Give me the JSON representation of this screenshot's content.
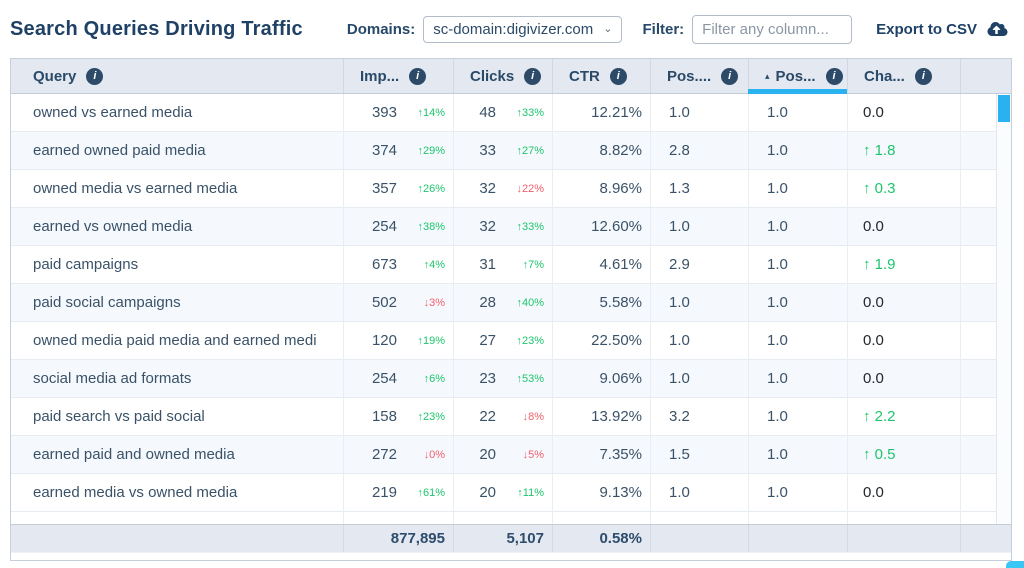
{
  "header": {
    "title": "Search Queries Driving Traffic",
    "domains_label": "Domains:",
    "domains_value": "sc-domain:digivizer.com",
    "filter_label": "Filter:",
    "filter_placeholder": "Filter any column...",
    "export_label": "Export to CSV"
  },
  "table": {
    "columns": [
      {
        "key": "query",
        "label": "Query",
        "sorted": false
      },
      {
        "key": "imp",
        "label": "Imp...",
        "sorted": false
      },
      {
        "key": "clicks",
        "label": "Clicks",
        "sorted": false
      },
      {
        "key": "ctr",
        "label": "CTR",
        "sorted": false
      },
      {
        "key": "pos1",
        "label": "Pos....",
        "sorted": false
      },
      {
        "key": "pos2",
        "label": "Pos...",
        "sorted": true
      },
      {
        "key": "cha",
        "label": "Cha...",
        "sorted": false
      }
    ],
    "rows": [
      {
        "query": "owned vs earned media",
        "impressions": "393",
        "impressions_change": {
          "dir": "up",
          "text": "14%"
        },
        "clicks": "48",
        "clicks_change": {
          "dir": "up",
          "text": "33%"
        },
        "ctr": "12.21%",
        "position_a": "1.0",
        "position_b": "1.0",
        "change": {
          "dir": "none",
          "text": "0.0"
        }
      },
      {
        "query": "earned owned paid media",
        "impressions": "374",
        "impressions_change": {
          "dir": "up",
          "text": "29%"
        },
        "clicks": "33",
        "clicks_change": {
          "dir": "up",
          "text": "27%"
        },
        "ctr": "8.82%",
        "position_a": "2.8",
        "position_b": "1.0",
        "change": {
          "dir": "up",
          "text": "1.8"
        }
      },
      {
        "query": "owned media vs earned media",
        "impressions": "357",
        "impressions_change": {
          "dir": "up",
          "text": "26%"
        },
        "clicks": "32",
        "clicks_change": {
          "dir": "down",
          "text": "22%"
        },
        "ctr": "8.96%",
        "position_a": "1.3",
        "position_b": "1.0",
        "change": {
          "dir": "up",
          "text": "0.3"
        }
      },
      {
        "query": "earned vs owned media",
        "impressions": "254",
        "impressions_change": {
          "dir": "up",
          "text": "38%"
        },
        "clicks": "32",
        "clicks_change": {
          "dir": "up",
          "text": "33%"
        },
        "ctr": "12.60%",
        "position_a": "1.0",
        "position_b": "1.0",
        "change": {
          "dir": "none",
          "text": "0.0"
        }
      },
      {
        "query": "paid campaigns",
        "impressions": "673",
        "impressions_change": {
          "dir": "up",
          "text": "4%"
        },
        "clicks": "31",
        "clicks_change": {
          "dir": "up",
          "text": "7%"
        },
        "ctr": "4.61%",
        "position_a": "2.9",
        "position_b": "1.0",
        "change": {
          "dir": "up",
          "text": "1.9"
        }
      },
      {
        "query": "paid social campaigns",
        "impressions": "502",
        "impressions_change": {
          "dir": "down",
          "text": "3%"
        },
        "clicks": "28",
        "clicks_change": {
          "dir": "up",
          "text": "40%"
        },
        "ctr": "5.58%",
        "position_a": "1.0",
        "position_b": "1.0",
        "change": {
          "dir": "none",
          "text": "0.0"
        }
      },
      {
        "query": "owned media paid media and earned medi",
        "impressions": "120",
        "impressions_change": {
          "dir": "up",
          "text": "19%"
        },
        "clicks": "27",
        "clicks_change": {
          "dir": "up",
          "text": "23%"
        },
        "ctr": "22.50%",
        "position_a": "1.0",
        "position_b": "1.0",
        "change": {
          "dir": "none",
          "text": "0.0"
        }
      },
      {
        "query": "social media ad formats",
        "impressions": "254",
        "impressions_change": {
          "dir": "up",
          "text": "6%"
        },
        "clicks": "23",
        "clicks_change": {
          "dir": "up",
          "text": "53%"
        },
        "ctr": "9.06%",
        "position_a": "1.0",
        "position_b": "1.0",
        "change": {
          "dir": "none",
          "text": "0.0"
        }
      },
      {
        "query": "paid search vs paid social",
        "impressions": "158",
        "impressions_change": {
          "dir": "up",
          "text": "23%"
        },
        "clicks": "22",
        "clicks_change": {
          "dir": "down",
          "text": "8%"
        },
        "ctr": "13.92%",
        "position_a": "3.2",
        "position_b": "1.0",
        "change": {
          "dir": "up",
          "text": "2.2"
        }
      },
      {
        "query": "earned paid and owned media",
        "impressions": "272",
        "impressions_change": {
          "dir": "down",
          "text": "0%"
        },
        "clicks": "20",
        "clicks_change": {
          "dir": "down",
          "text": "5%"
        },
        "ctr": "7.35%",
        "position_a": "1.5",
        "position_b": "1.0",
        "change": {
          "dir": "up",
          "text": "0.5"
        }
      },
      {
        "query": "earned media vs owned media",
        "impressions": "219",
        "impressions_change": {
          "dir": "up",
          "text": "61%"
        },
        "clicks": "20",
        "clicks_change": {
          "dir": "up",
          "text": "11%"
        },
        "ctr": "9.13%",
        "position_a": "1.0",
        "position_b": "1.0",
        "change": {
          "dir": "none",
          "text": "0.0"
        }
      }
    ],
    "totals": {
      "impressions": "877,895",
      "clicks": "5,107",
      "ctr": "0.58%"
    }
  },
  "icons": {
    "info": "info-icon",
    "cloud_download": "cloud-download-icon",
    "sort_asc": "sort-asc-icon",
    "chevron_down": "chevron-down-icon",
    "arrow_up": "↑",
    "arrow_down": "↓"
  },
  "colors": {
    "title_navy": "#1e4165",
    "header_bg": "#e3e8f1",
    "alt_row_bg": "#f5f8fc",
    "positive_green": "#1ec56e",
    "negative_red": "#f2606e",
    "accent_cyan": "#2ab2f0"
  }
}
